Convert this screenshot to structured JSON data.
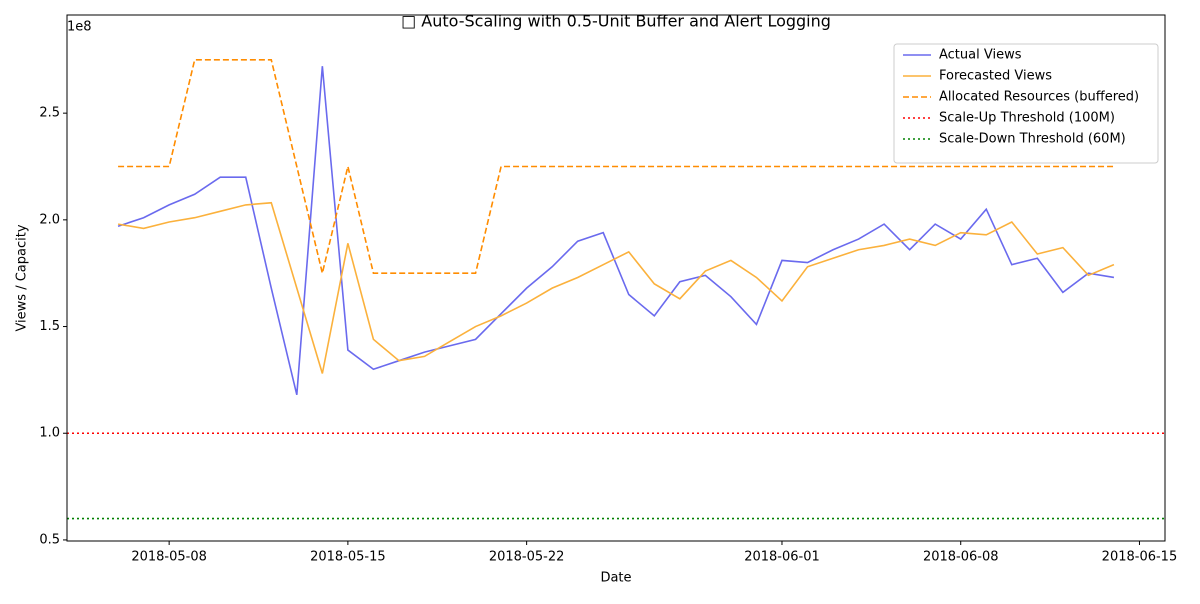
{
  "chart_data": {
    "type": "line",
    "title": "□ Auto-Scaling with 0.5-Unit Buffer and Alert Logging",
    "xlabel": "Date",
    "ylabel": "Views / Capacity",
    "y_offset_label": "1e8",
    "x": [
      "2018-05-06",
      "2018-05-07",
      "2018-05-08",
      "2018-05-09",
      "2018-05-10",
      "2018-05-11",
      "2018-05-12",
      "2018-05-13",
      "2018-05-14",
      "2018-05-15",
      "2018-05-16",
      "2018-05-17",
      "2018-05-18",
      "2018-05-19",
      "2018-05-20",
      "2018-05-21",
      "2018-05-22",
      "2018-05-23",
      "2018-05-24",
      "2018-05-25",
      "2018-05-26",
      "2018-05-27",
      "2018-05-28",
      "2018-05-29",
      "2018-05-30",
      "2018-05-31",
      "2018-06-01",
      "2018-06-02",
      "2018-06-03",
      "2018-06-04",
      "2018-06-05",
      "2018-06-06",
      "2018-06-07",
      "2018-06-08",
      "2018-06-09",
      "2018-06-10",
      "2018-06-11",
      "2018-06-12",
      "2018-06-13",
      "2018-06-14"
    ],
    "series": [
      {
        "name": "Actual Views",
        "color": "#6a6aee",
        "style": "solid",
        "values": [
          1.97,
          2.01,
          2.07,
          2.12,
          2.2,
          2.2,
          1.68,
          1.18,
          2.72,
          1.39,
          1.3,
          1.34,
          1.38,
          1.41,
          1.44,
          1.56,
          1.68,
          1.78,
          1.9,
          1.94,
          1.65,
          1.55,
          1.71,
          1.74,
          1.64,
          1.51,
          1.81,
          1.8,
          1.86,
          1.91,
          1.98,
          1.86,
          1.98,
          1.91,
          2.05,
          1.79,
          1.82,
          1.66,
          1.75,
          1.73
        ]
      },
      {
        "name": "Forecasted Views",
        "color": "#fbb13c",
        "style": "solid",
        "values": [
          1.98,
          1.96,
          1.99,
          2.01,
          2.04,
          2.07,
          2.08,
          1.68,
          1.28,
          1.89,
          1.44,
          1.34,
          1.36,
          1.43,
          1.5,
          1.55,
          1.61,
          1.68,
          1.73,
          1.79,
          1.85,
          1.7,
          1.63,
          1.76,
          1.81,
          1.73,
          1.62,
          1.78,
          1.82,
          1.86,
          1.88,
          1.91,
          1.88,
          1.94,
          1.93,
          1.99,
          1.84,
          1.87,
          1.74,
          1.79
        ]
      },
      {
        "name": "Allocated Resources (buffered)",
        "color": "#ff8c00",
        "style": "dashed",
        "values": [
          2.25,
          2.25,
          2.25,
          2.75,
          2.75,
          2.75,
          2.75,
          2.25,
          1.75,
          2.25,
          1.75,
          1.75,
          1.75,
          1.75,
          1.75,
          2.25,
          2.25,
          2.25,
          2.25,
          2.25,
          2.25,
          2.25,
          2.25,
          2.25,
          2.25,
          2.25,
          2.25,
          2.25,
          2.25,
          2.25,
          2.25,
          2.25,
          2.25,
          2.25,
          2.25,
          2.25,
          2.25,
          2.25,
          2.25,
          2.25
        ]
      }
    ],
    "thresholds": [
      {
        "name": "Scale-Up Threshold (100M)",
        "value": 1.0,
        "color": "#ff0000",
        "style": "dotted"
      },
      {
        "name": "Scale-Down Threshold (60M)",
        "value": 0.6,
        "color": "#008000",
        "style": "dotted"
      }
    ],
    "xlim": [
      "2018-05-04",
      "2018-06-16"
    ],
    "xticks": [
      "2018-05-08",
      "2018-05-15",
      "2018-05-22",
      "2018-06-01",
      "2018-06-08",
      "2018-06-15"
    ],
    "ylim": [
      0.495,
      2.96
    ],
    "yticks": [
      0.5,
      {
        "value": 1,
        "label": "1.0"
      },
      1.5,
      {
        "value": 2,
        "label": "2.0"
      },
      2.5
    ],
    "legend": "upper right"
  }
}
